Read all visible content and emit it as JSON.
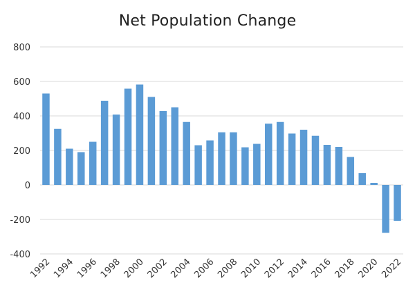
{
  "chart_data": {
    "type": "bar",
    "title": "Net Population Change",
    "xlabel": "",
    "ylabel": "",
    "ylim": [
      -400,
      800
    ],
    "yticks": [
      800,
      600,
      400,
      200,
      0,
      -200,
      -400
    ],
    "grid": true,
    "legend": "none",
    "bar_color": "#5b9bd5",
    "grid_color": "#d9d9d9",
    "categories": [
      "1992",
      "1993",
      "1994",
      "1995",
      "1996",
      "1997",
      "1998",
      "1999",
      "2000",
      "2001",
      "2002",
      "2003",
      "2004",
      "2005",
      "2006",
      "2007",
      "2008",
      "2009",
      "2010",
      "2011",
      "2012",
      "2013",
      "2014",
      "2015",
      "2016",
      "2017",
      "2018",
      "2019",
      "2020",
      "2021",
      "2022"
    ],
    "x_tick_labels": [
      "1992",
      "1994",
      "1996",
      "1998",
      "2000",
      "2002",
      "2004",
      "2006",
      "2008",
      "2010",
      "2012",
      "2014",
      "2016",
      "2018",
      "2020",
      "2022"
    ],
    "values": [
      530,
      325,
      210,
      190,
      250,
      488,
      408,
      558,
      582,
      510,
      428,
      450,
      365,
      230,
      258,
      305,
      305,
      218,
      238,
      355,
      365,
      298,
      320,
      285,
      232,
      220,
      162,
      68,
      12,
      -278,
      -208
    ]
  }
}
